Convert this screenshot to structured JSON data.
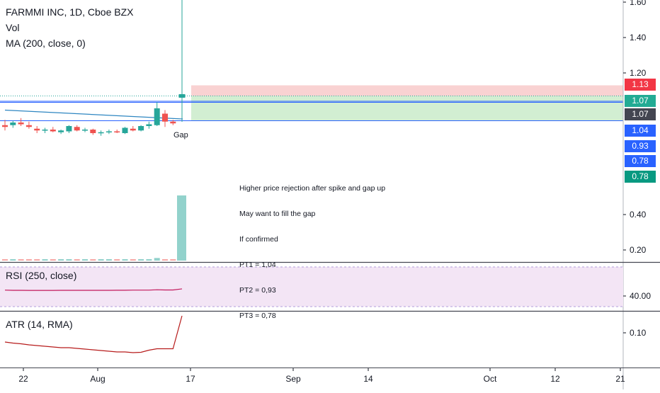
{
  "header": {
    "symbol": "FARMMI INC, 1D, Cboe BZX",
    "vol": "Vol",
    "ma": "MA (200, close, 0)"
  },
  "colors": {
    "up": "#26a69a",
    "down": "#ef5350",
    "ma_line": "#2e86c1",
    "rsi_line": "#c2185b",
    "atr_line": "#b71c1c",
    "stop_zone": "#f8c7c7",
    "target_zone": "#cdeccd",
    "rsi_band": "#f3e5f5"
  },
  "price_tags": [
    {
      "label": "1.13",
      "color": "#f23645"
    },
    {
      "label": "1.07",
      "color": "#22ab94"
    },
    {
      "label": "1.07",
      "color": "#434651"
    },
    {
      "label": "1.04",
      "color": "#2962ff"
    },
    {
      "label": "0.93",
      "color": "#2962ff"
    },
    {
      "label": "0.78",
      "color": "#2962ff"
    },
    {
      "label": "0.78",
      "color": "#089981"
    }
  ],
  "annotations": {
    "gap_label": "Gap",
    "note_lines": [
      "Higher price rejection after spike and gap up",
      "May want to fill the gap",
      "If confirmed",
      "PT1 = 1,04",
      "PT2 = 0,93",
      "PT3 = 0,78"
    ]
  },
  "chart_data": [
    {
      "type": "candlestick",
      "title": "FARMMI INC, 1D, Cboe BZX",
      "y_ticks": [
        "1.60",
        "1.40",
        "1.20",
        "0.40",
        "0.20"
      ],
      "y_tick_values": [
        1.6,
        1.4,
        1.2,
        0.4,
        0.2
      ],
      "x_ticks": [
        "22",
        "Aug",
        "17",
        "Sep",
        "14",
        "Oct",
        "12",
        "21"
      ],
      "candles": [
        {
          "o": 0.905,
          "h": 0.935,
          "l": 0.875,
          "c": 0.895
        },
        {
          "o": 0.905,
          "h": 0.93,
          "l": 0.89,
          "c": 0.92
        },
        {
          "o": 0.92,
          "h": 0.945,
          "l": 0.9,
          "c": 0.91
        },
        {
          "o": 0.905,
          "h": 0.925,
          "l": 0.885,
          "c": 0.895
        },
        {
          "o": 0.885,
          "h": 0.9,
          "l": 0.86,
          "c": 0.875
        },
        {
          "o": 0.875,
          "h": 0.89,
          "l": 0.86,
          "c": 0.88
        },
        {
          "o": 0.88,
          "h": 0.895,
          "l": 0.865,
          "c": 0.87
        },
        {
          "o": 0.865,
          "h": 0.88,
          "l": 0.855,
          "c": 0.875
        },
        {
          "o": 0.87,
          "h": 0.905,
          "l": 0.86,
          "c": 0.9
        },
        {
          "o": 0.895,
          "h": 0.905,
          "l": 0.87,
          "c": 0.875
        },
        {
          "o": 0.875,
          "h": 0.89,
          "l": 0.865,
          "c": 0.88
        },
        {
          "o": 0.88,
          "h": 0.885,
          "l": 0.85,
          "c": 0.86
        },
        {
          "o": 0.86,
          "h": 0.875,
          "l": 0.845,
          "c": 0.865
        },
        {
          "o": 0.865,
          "h": 0.88,
          "l": 0.855,
          "c": 0.87
        },
        {
          "o": 0.87,
          "h": 0.88,
          "l": 0.86,
          "c": 0.865
        },
        {
          "o": 0.86,
          "h": 0.895,
          "l": 0.855,
          "c": 0.89
        },
        {
          "o": 0.885,
          "h": 0.9,
          "l": 0.87,
          "c": 0.875
        },
        {
          "o": 0.875,
          "h": 0.905,
          "l": 0.87,
          "c": 0.9
        },
        {
          "o": 0.9,
          "h": 0.925,
          "l": 0.885,
          "c": 0.91
        },
        {
          "o": 0.905,
          "h": 1.035,
          "l": 0.9,
          "c": 1.0
        },
        {
          "o": 0.97,
          "h": 0.99,
          "l": 0.895,
          "c": 0.925
        },
        {
          "o": 0.925,
          "h": 0.935,
          "l": 0.905,
          "c": 0.915
        },
        {
          "o": 1.06,
          "h": 1.6,
          "l": 1.0,
          "c": 1.08
        }
      ],
      "volume": [
        0.02,
        0.02,
        0.02,
        0.02,
        0.02,
        0.02,
        0.02,
        0.02,
        0.02,
        0.02,
        0.02,
        0.02,
        0.02,
        0.02,
        0.02,
        0.02,
        0.02,
        0.02,
        0.02,
        0.04,
        0.02,
        0.02,
        1.0
      ],
      "ma_line": [
        0.99,
        0.94
      ],
      "levels": [
        1.13,
        1.07,
        1.04,
        0.93
      ],
      "position": {
        "stop": 1.13,
        "entry": 1.07,
        "target": 0.93
      }
    },
    {
      "type": "line",
      "title": "RSI (250, close)",
      "y_ticks": [
        "40.00"
      ],
      "values": [
        50.2,
        50.0,
        50.0,
        49.9,
        49.9,
        49.9,
        49.9,
        50.0,
        50.0,
        50.0,
        50.0,
        50.0,
        50.0,
        50.0,
        50.1,
        50.1,
        50.2,
        50.2,
        50.2,
        50.5,
        50.3,
        50.3,
        51.3
      ]
    },
    {
      "type": "line",
      "title": "ATR (14, RMA)",
      "y_ticks": [
        "0.10"
      ],
      "values": [
        0.074,
        0.071,
        0.069,
        0.066,
        0.064,
        0.062,
        0.06,
        0.058,
        0.058,
        0.056,
        0.054,
        0.052,
        0.05,
        0.048,
        0.046,
        0.046,
        0.044,
        0.045,
        0.051,
        0.055,
        0.055,
        0.055,
        0.148
      ]
    }
  ]
}
